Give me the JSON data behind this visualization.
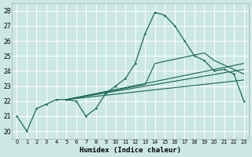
{
  "xlabel": "Humidex (Indice chaleur)",
  "bg_color": "#cce8e5",
  "line_color": "#1a6b5a",
  "grid_color": "#ffffff",
  "xlim": [
    -0.5,
    23.5
  ],
  "ylim": [
    19.5,
    28.5
  ],
  "yticks": [
    20,
    21,
    22,
    23,
    24,
    25,
    26,
    27,
    28
  ],
  "xticks": [
    0,
    1,
    2,
    3,
    4,
    5,
    6,
    7,
    8,
    9,
    10,
    11,
    12,
    13,
    14,
    15,
    16,
    17,
    18,
    19,
    20,
    21,
    22,
    23
  ],
  "main_x": [
    0,
    1,
    2,
    3,
    4,
    5,
    6,
    7,
    8,
    9,
    10,
    11,
    12,
    13,
    14,
    15,
    16,
    17,
    18,
    19,
    20,
    21,
    22,
    23
  ],
  "main_y": [
    21.0,
    20.0,
    21.5,
    21.8,
    22.1,
    22.1,
    22.0,
    21.0,
    21.5,
    22.5,
    23.0,
    23.5,
    24.5,
    26.5,
    27.9,
    27.7,
    27.0,
    26.0,
    25.0,
    24.7,
    24.0,
    24.1,
    23.8,
    22.0
  ],
  "lines": [
    {
      "x": [
        5,
        13,
        14,
        19,
        20,
        21,
        22,
        23
      ],
      "y": [
        22.1,
        23.1,
        24.5,
        25.2,
        24.7,
        24.4,
        24.1,
        23.8
      ]
    },
    {
      "x": [
        5,
        23
      ],
      "y": [
        22.1,
        24.5
      ]
    },
    {
      "x": [
        5,
        23
      ],
      "y": [
        22.1,
        24.1
      ]
    },
    {
      "x": [
        5,
        23
      ],
      "y": [
        22.1,
        23.4
      ]
    }
  ]
}
